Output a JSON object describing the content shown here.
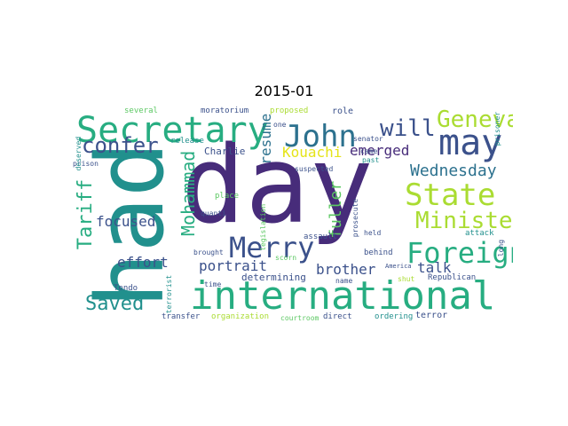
{
  "figure": {
    "title": "2015-01"
  },
  "words": [
    {
      "text": "had"
    },
    {
      "text": "day"
    },
    {
      "text": "international"
    },
    {
      "text": "Secretary"
    },
    {
      "text": "John"
    },
    {
      "text": "may"
    },
    {
      "text": "will"
    },
    {
      "text": "Geneva"
    },
    {
      "text": "confer"
    },
    {
      "text": "State"
    },
    {
      "text": "Minister"
    },
    {
      "text": "Foreign"
    },
    {
      "text": "Merry"
    },
    {
      "text": "Wednesday"
    },
    {
      "text": "Kouachi"
    },
    {
      "text": "emerged"
    },
    {
      "text": "resume"
    },
    {
      "text": "fuller"
    },
    {
      "text": "Mohammad"
    },
    {
      "text": "Tariff"
    },
    {
      "text": "focused"
    },
    {
      "text": "effort"
    },
    {
      "text": "Saved"
    },
    {
      "text": "portrait"
    },
    {
      "text": "brother"
    },
    {
      "text": "talk"
    },
    {
      "text": "determining"
    },
    {
      "text": "Charlie"
    },
    {
      "text": "release"
    },
    {
      "text": "moratorium"
    },
    {
      "text": "several"
    },
    {
      "text": "proposed"
    },
    {
      "text": "role"
    },
    {
      "text": "one"
    },
    {
      "text": "senator"
    },
    {
      "text": "suspected"
    },
    {
      "text": "came"
    },
    {
      "text": "past"
    },
    {
      "text": "prisoner"
    },
    {
      "text": "prison"
    },
    {
      "text": "deserved"
    },
    {
      "text": "place"
    },
    {
      "text": "quanti"
    },
    {
      "text": "brought"
    },
    {
      "text": "assault"
    },
    {
      "text": "legislation"
    },
    {
      "text": "prosecute"
    },
    {
      "text": "held"
    },
    {
      "text": "behind"
    },
    {
      "text": "attack"
    },
    {
      "text": "America"
    },
    {
      "text": "shut"
    },
    {
      "text": "Republican"
    },
    {
      "text": "scorn"
    },
    {
      "text": "time"
    },
    {
      "text": "name"
    },
    {
      "text": "long"
    },
    {
      "text": "Tendo"
    },
    {
      "text": "terrorist"
    },
    {
      "text": "transfer"
    },
    {
      "text": "organization"
    },
    {
      "text": "courtroom"
    },
    {
      "text": "direct"
    },
    {
      "text": "ordering"
    },
    {
      "text": "terror"
    }
  ],
  "palette": {
    "dark_purple": "#472c7a",
    "indigo": "#3b518b",
    "blue": "#2c718e",
    "teal": "#21908d",
    "green_teal": "#27ad81",
    "green": "#5cc863",
    "lime": "#aadc32",
    "yellow": "#e5e419",
    "background": "#ffffff"
  }
}
